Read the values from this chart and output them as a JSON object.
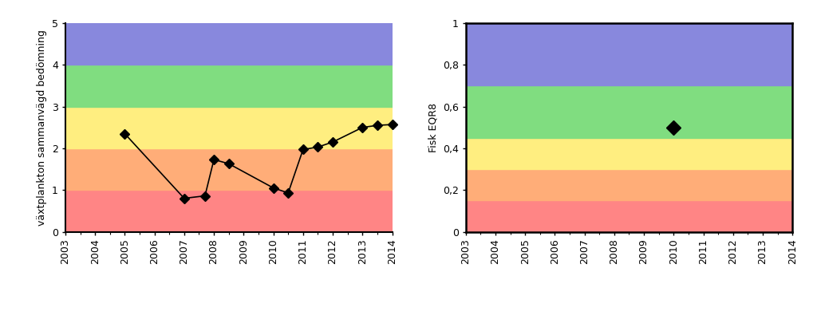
{
  "left": {
    "ylabel": "växtplankton sammanvägd bedömning",
    "xlim": [
      2003,
      2014
    ],
    "ylim": [
      0,
      5
    ],
    "xticks": [
      2003,
      2004,
      2005,
      2006,
      2007,
      2008,
      2009,
      2010,
      2011,
      2012,
      2013,
      2014
    ],
    "yticks": [
      0,
      1,
      2,
      3,
      4,
      5
    ],
    "bands": [
      {
        "ymin": 0,
        "ymax": 1,
        "color": "#FF8585"
      },
      {
        "ymin": 1,
        "ymax": 2,
        "color": "#FFAD78"
      },
      {
        "ymin": 2,
        "ymax": 3,
        "color": "#FFEE80"
      },
      {
        "ymin": 3,
        "ymax": 4,
        "color": "#80DD80"
      },
      {
        "ymin": 4,
        "ymax": 5,
        "color": "#8888DD"
      }
    ],
    "data_x": [
      2005,
      2007,
      2007.7,
      2008,
      2008.5,
      2010,
      2010.5,
      2011,
      2011.5,
      2012,
      2013,
      2013.5,
      2014
    ],
    "data_y": [
      2.35,
      0.8,
      0.86,
      1.73,
      1.63,
      1.05,
      0.93,
      1.97,
      2.03,
      2.15,
      2.5,
      2.55,
      2.57
    ]
  },
  "right": {
    "ylabel": "Fisk EQR8",
    "xlim": [
      2003,
      2014
    ],
    "ylim": [
      0,
      1
    ],
    "xticks": [
      2003,
      2004,
      2005,
      2006,
      2007,
      2008,
      2009,
      2010,
      2011,
      2012,
      2013,
      2014
    ],
    "yticks": [
      0,
      0.2,
      0.4,
      0.6,
      0.8,
      1.0
    ],
    "ytick_labels": [
      "0",
      "0,2",
      "0,4",
      "0,6",
      "0,8",
      "1"
    ],
    "bands": [
      {
        "ymin": 0,
        "ymax": 0.15,
        "color": "#FF8585"
      },
      {
        "ymin": 0.15,
        "ymax": 0.3,
        "color": "#FFAD78"
      },
      {
        "ymin": 0.3,
        "ymax": 0.45,
        "color": "#FFEE80"
      },
      {
        "ymin": 0.45,
        "ymax": 0.7,
        "color": "#80DD80"
      },
      {
        "ymin": 0.7,
        "ymax": 1.0,
        "color": "#8888DD"
      }
    ],
    "data_x": [
      2010
    ],
    "data_y": [
      0.5
    ]
  },
  "figsize": [
    10.24,
    4.15
  ],
  "dpi": 100
}
